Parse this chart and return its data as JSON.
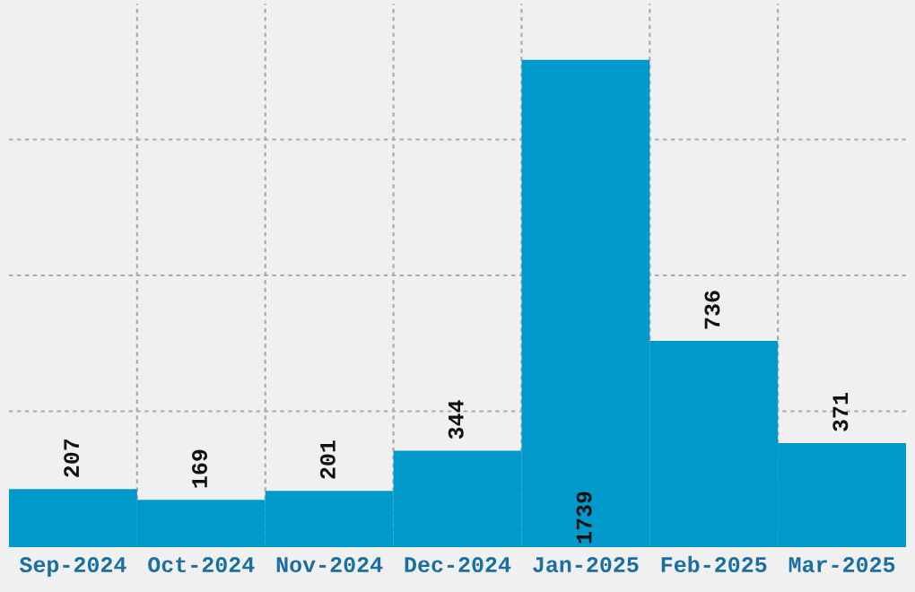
{
  "chart_data": {
    "type": "bar",
    "categories": [
      "Sep-2024",
      "Oct-2024",
      "Nov-2024",
      "Dec-2024",
      "Jan-2025",
      "Feb-2025",
      "Mar-2025"
    ],
    "values": [
      207,
      169,
      201,
      344,
      1739,
      736,
      371
    ],
    "color": "#0099cc",
    "ylim": [
      0,
      1940
    ],
    "yticks": [
      {
        "value": 485,
        "label": null
      },
      {
        "value": 970,
        "label": null
      },
      {
        "value": 1455,
        "label": null
      }
    ],
    "tick_labels": "x",
    "grid": true,
    "data_labels": true
  }
}
